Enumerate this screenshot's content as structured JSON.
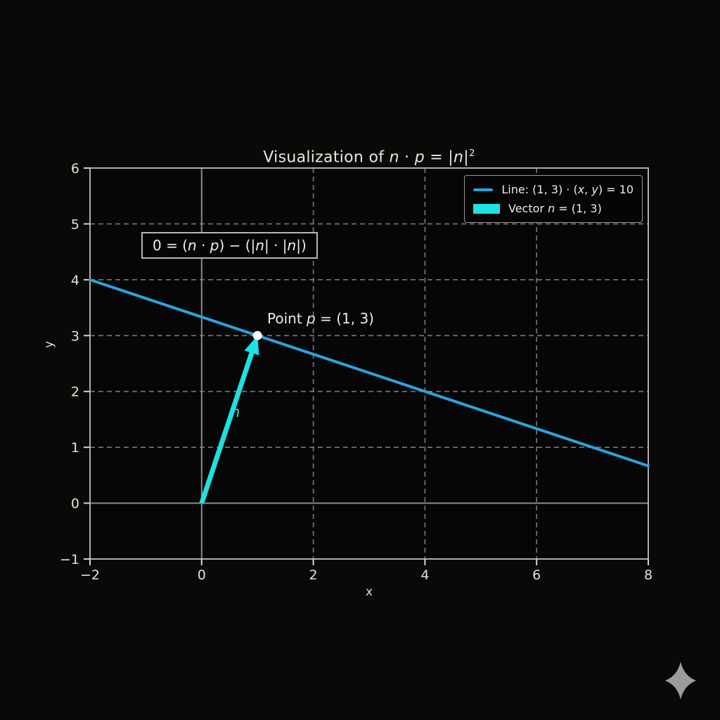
{
  "figure": {
    "title_html": "Visualization of <i>n</i> · <i>p</i> = |<i>n</i>|<sup>2</sup>",
    "xlabel": "x",
    "ylabel": "y"
  },
  "legend": {
    "position": "upper right",
    "items": [
      {
        "swatch": "line",
        "color": "#2ba3dc",
        "label_html": "Line: (1, 3) · (<i>x</i>, <i>y</i>) = 10",
        "label": "Line: (1, 3) · (x, y) = 10"
      },
      {
        "swatch": "patch",
        "color": "#1ce2e2",
        "label_html": "Vector <i>n</i> = (1, 3)",
        "label": "Vector n = (1, 3)"
      }
    ]
  },
  "annotation": {
    "text_html": "0 = (<i>n</i> · <i>p</i>) − (|<i>n</i>| · |<i>n</i>|)",
    "text": "0 = (n · p) − (|n| · |n|)"
  },
  "point_annotation": {
    "label_html": "Point <i>p</i> = (1, 3)",
    "label": "Point p = (1, 3)"
  },
  "chart_data": {
    "type": "line",
    "title": "Visualization of n · p = |n|²",
    "xlabel": "x",
    "ylabel": "y",
    "xlim": [
      -2,
      8
    ],
    "ylim": [
      -1,
      6
    ],
    "xticks": [
      -2,
      0,
      2,
      4,
      6,
      8
    ],
    "yticks": [
      -1,
      0,
      1,
      2,
      3,
      4,
      5,
      6
    ],
    "grid": "dashed",
    "legend_position": "upper right",
    "series": [
      {
        "name": "Line: (1, 3) · (x, y) = 10",
        "kind": "line",
        "color": "#2ba3dc",
        "equation": "x + 3y = 10",
        "points": [
          [
            -2,
            4
          ],
          [
            8,
            0.6667
          ]
        ]
      },
      {
        "name": "Vector n = (1, 3)",
        "kind": "vector",
        "color": "#1ce2e2",
        "from": [
          0,
          0
        ],
        "to": [
          1,
          3
        ],
        "label": "n"
      }
    ],
    "point": {
      "x": 1,
      "y": 3,
      "color": "#ffffff"
    },
    "axlines": {
      "vertical_at_x": 0,
      "horizontal_at_y": 0
    },
    "style_colors": {
      "grid": "#8c8c8c",
      "axline": "#8a8a8a",
      "spine": "#aeacaa",
      "tick": "#d5d3d0",
      "tick_label": "#e2e0dd",
      "plot_background": "#060606"
    }
  },
  "decorations": {
    "sparkle_color": "#9c9c9c"
  }
}
